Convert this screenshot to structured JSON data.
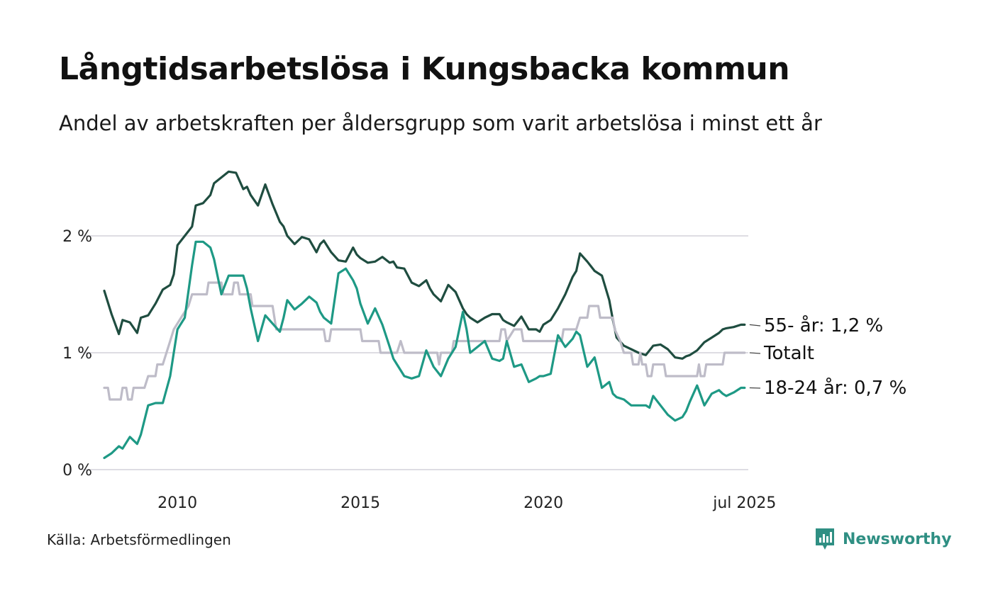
{
  "title": "Långtidsarbetslösa i Kungsbacka kommun",
  "subtitle": "Andel av arbetskraften per åldersgrupp som varit arbetslösa i minst ett år",
  "source": "Källa: Arbetsförmedlingen",
  "brand": "Newsworthy",
  "colors": {
    "series_55": "#1f4d40",
    "series_18_24": "#1e9985",
    "series_total": "#bebcc8",
    "grid": "#dedde3",
    "brand": "#2f8f83"
  },
  "chart_data": {
    "type": "line",
    "xlim": [
      2008.0,
      2025.6
    ],
    "ylim": [
      0,
      2.6
    ],
    "x_ticks": [
      {
        "value": 2010,
        "label": "2010"
      },
      {
        "value": 2015,
        "label": "2015"
      },
      {
        "value": 2020,
        "label": "2020"
      },
      {
        "value": 2025.5,
        "label": "jul 2025"
      }
    ],
    "y_ticks": [
      {
        "value": 0,
        "label": "0 %"
      },
      {
        "value": 1,
        "label": "1 %"
      },
      {
        "value": 2,
        "label": "2 %"
      }
    ],
    "grid": true,
    "series": [
      {
        "name": "55- år",
        "label": "55- år: 1,2 %",
        "color": "#1f4d40",
        "points": [
          [
            2008.0,
            1.53
          ],
          [
            2008.2,
            1.33
          ],
          [
            2008.4,
            1.16
          ],
          [
            2008.5,
            1.28
          ],
          [
            2008.7,
            1.26
          ],
          [
            2008.9,
            1.17
          ],
          [
            2009.0,
            1.3
          ],
          [
            2009.2,
            1.32
          ],
          [
            2009.4,
            1.42
          ],
          [
            2009.6,
            1.54
          ],
          [
            2009.8,
            1.58
          ],
          [
            2009.9,
            1.67
          ],
          [
            2010.0,
            1.92
          ],
          [
            2010.2,
            2.0
          ],
          [
            2010.4,
            2.08
          ],
          [
            2010.5,
            2.26
          ],
          [
            2010.7,
            2.28
          ],
          [
            2010.9,
            2.35
          ],
          [
            2011.0,
            2.45
          ],
          [
            2011.2,
            2.5
          ],
          [
            2011.4,
            2.55
          ],
          [
            2011.6,
            2.54
          ],
          [
            2011.8,
            2.4
          ],
          [
            2011.9,
            2.42
          ],
          [
            2012.0,
            2.35
          ],
          [
            2012.2,
            2.26
          ],
          [
            2012.4,
            2.44
          ],
          [
            2012.6,
            2.27
          ],
          [
            2012.8,
            2.12
          ],
          [
            2012.9,
            2.08
          ],
          [
            2013.0,
            2.0
          ],
          [
            2013.2,
            1.93
          ],
          [
            2013.4,
            1.99
          ],
          [
            2013.6,
            1.97
          ],
          [
            2013.8,
            1.86
          ],
          [
            2013.9,
            1.93
          ],
          [
            2014.0,
            1.96
          ],
          [
            2014.2,
            1.86
          ],
          [
            2014.4,
            1.79
          ],
          [
            2014.6,
            1.78
          ],
          [
            2014.8,
            1.9
          ],
          [
            2014.9,
            1.84
          ],
          [
            2015.0,
            1.81
          ],
          [
            2015.2,
            1.77
          ],
          [
            2015.4,
            1.78
          ],
          [
            2015.6,
            1.82
          ],
          [
            2015.8,
            1.77
          ],
          [
            2015.9,
            1.78
          ],
          [
            2016.0,
            1.73
          ],
          [
            2016.2,
            1.72
          ],
          [
            2016.4,
            1.6
          ],
          [
            2016.6,
            1.57
          ],
          [
            2016.8,
            1.62
          ],
          [
            2016.9,
            1.55
          ],
          [
            2017.0,
            1.5
          ],
          [
            2017.2,
            1.44
          ],
          [
            2017.4,
            1.58
          ],
          [
            2017.6,
            1.52
          ],
          [
            2017.8,
            1.38
          ],
          [
            2017.9,
            1.33
          ],
          [
            2018.0,
            1.3
          ],
          [
            2018.2,
            1.26
          ],
          [
            2018.4,
            1.3
          ],
          [
            2018.6,
            1.33
          ],
          [
            2018.8,
            1.33
          ],
          [
            2018.9,
            1.28
          ],
          [
            2019.0,
            1.26
          ],
          [
            2019.2,
            1.23
          ],
          [
            2019.4,
            1.31
          ],
          [
            2019.6,
            1.2
          ],
          [
            2019.8,
            1.2
          ],
          [
            2019.9,
            1.18
          ],
          [
            2020.0,
            1.24
          ],
          [
            2020.2,
            1.28
          ],
          [
            2020.4,
            1.38
          ],
          [
            2020.6,
            1.5
          ],
          [
            2020.8,
            1.65
          ],
          [
            2020.9,
            1.7
          ],
          [
            2021.0,
            1.85
          ],
          [
            2021.2,
            1.78
          ],
          [
            2021.4,
            1.7
          ],
          [
            2021.6,
            1.66
          ],
          [
            2021.8,
            1.45
          ],
          [
            2021.9,
            1.28
          ],
          [
            2022.0,
            1.13
          ],
          [
            2022.2,
            1.06
          ],
          [
            2022.4,
            1.03
          ],
          [
            2022.6,
            1.0
          ],
          [
            2022.8,
            0.98
          ],
          [
            2022.9,
            1.02
          ],
          [
            2023.0,
            1.06
          ],
          [
            2023.2,
            1.07
          ],
          [
            2023.4,
            1.03
          ],
          [
            2023.6,
            0.96
          ],
          [
            2023.8,
            0.95
          ],
          [
            2023.9,
            0.97
          ],
          [
            2024.0,
            0.98
          ],
          [
            2024.2,
            1.02
          ],
          [
            2024.4,
            1.09
          ],
          [
            2024.6,
            1.13
          ],
          [
            2024.8,
            1.17
          ],
          [
            2024.9,
            1.2
          ],
          [
            2025.0,
            1.21
          ],
          [
            2025.2,
            1.22
          ],
          [
            2025.4,
            1.24
          ],
          [
            2025.5,
            1.24
          ]
        ]
      },
      {
        "name": "Totalt",
        "label": "Totalt",
        "color": "#bebcc8",
        "points": [
          [
            2008.0,
            0.7
          ],
          [
            2008.1,
            0.7
          ],
          [
            2008.15,
            0.6
          ],
          [
            2008.45,
            0.6
          ],
          [
            2008.5,
            0.7
          ],
          [
            2008.6,
            0.7
          ],
          [
            2008.65,
            0.6
          ],
          [
            2008.75,
            0.6
          ],
          [
            2008.8,
            0.7
          ],
          [
            2009.1,
            0.7
          ],
          [
            2009.2,
            0.8
          ],
          [
            2009.4,
            0.8
          ],
          [
            2009.45,
            0.9
          ],
          [
            2009.6,
            0.9
          ],
          [
            2009.7,
            1.0
          ],
          [
            2009.8,
            1.1
          ],
          [
            2009.9,
            1.2
          ],
          [
            2010.1,
            1.3
          ],
          [
            2010.3,
            1.4
          ],
          [
            2010.4,
            1.5
          ],
          [
            2010.8,
            1.5
          ],
          [
            2010.85,
            1.6
          ],
          [
            2011.2,
            1.6
          ],
          [
            2011.25,
            1.5
          ],
          [
            2011.5,
            1.5
          ],
          [
            2011.55,
            1.6
          ],
          [
            2011.65,
            1.6
          ],
          [
            2011.7,
            1.5
          ],
          [
            2012.0,
            1.5
          ],
          [
            2012.05,
            1.4
          ],
          [
            2012.6,
            1.4
          ],
          [
            2012.65,
            1.3
          ],
          [
            2012.7,
            1.2
          ],
          [
            2014.0,
            1.2
          ],
          [
            2014.05,
            1.1
          ],
          [
            2014.15,
            1.1
          ],
          [
            2014.2,
            1.2
          ],
          [
            2015.0,
            1.2
          ],
          [
            2015.05,
            1.1
          ],
          [
            2015.5,
            1.1
          ],
          [
            2015.55,
            1.0
          ],
          [
            2016.0,
            1.0
          ],
          [
            2016.1,
            1.1
          ],
          [
            2016.2,
            1.0
          ],
          [
            2017.1,
            1.0
          ],
          [
            2017.15,
            0.9
          ],
          [
            2017.2,
            1.0
          ],
          [
            2017.5,
            1.0
          ],
          [
            2017.55,
            1.1
          ],
          [
            2018.8,
            1.1
          ],
          [
            2018.85,
            1.2
          ],
          [
            2018.95,
            1.2
          ],
          [
            2019.0,
            1.1
          ],
          [
            2019.2,
            1.2
          ],
          [
            2019.4,
            1.2
          ],
          [
            2019.45,
            1.1
          ],
          [
            2020.5,
            1.1
          ],
          [
            2020.55,
            1.2
          ],
          [
            2020.9,
            1.2
          ],
          [
            2021.0,
            1.3
          ],
          [
            2021.2,
            1.3
          ],
          [
            2021.25,
            1.4
          ],
          [
            2021.5,
            1.4
          ],
          [
            2021.55,
            1.3
          ],
          [
            2021.9,
            1.3
          ],
          [
            2021.95,
            1.2
          ],
          [
            2022.1,
            1.1
          ],
          [
            2022.2,
            1.0
          ],
          [
            2022.4,
            1.0
          ],
          [
            2022.45,
            0.9
          ],
          [
            2022.6,
            0.9
          ],
          [
            2022.65,
            1.0
          ],
          [
            2022.7,
            0.9
          ],
          [
            2022.8,
            0.9
          ],
          [
            2022.85,
            0.8
          ],
          [
            2022.95,
            0.8
          ],
          [
            2023.0,
            0.9
          ],
          [
            2023.3,
            0.9
          ],
          [
            2023.35,
            0.8
          ],
          [
            2024.2,
            0.8
          ],
          [
            2024.25,
            0.9
          ],
          [
            2024.3,
            0.8
          ],
          [
            2024.4,
            0.8
          ],
          [
            2024.45,
            0.9
          ],
          [
            2024.9,
            0.9
          ],
          [
            2024.95,
            1.0
          ],
          [
            2025.5,
            1.0
          ]
        ]
      },
      {
        "name": "18-24 år",
        "label": "18-24 år: 0,7 %",
        "color": "#1e9985",
        "points": [
          [
            2008.0,
            0.1
          ],
          [
            2008.2,
            0.14
          ],
          [
            2008.4,
            0.2
          ],
          [
            2008.5,
            0.18
          ],
          [
            2008.7,
            0.28
          ],
          [
            2008.9,
            0.22
          ],
          [
            2009.0,
            0.3
          ],
          [
            2009.2,
            0.55
          ],
          [
            2009.4,
            0.57
          ],
          [
            2009.6,
            0.57
          ],
          [
            2009.8,
            0.8
          ],
          [
            2009.9,
            1.0
          ],
          [
            2010.0,
            1.2
          ],
          [
            2010.2,
            1.3
          ],
          [
            2010.4,
            1.75
          ],
          [
            2010.5,
            1.95
          ],
          [
            2010.7,
            1.95
          ],
          [
            2010.9,
            1.9
          ],
          [
            2011.0,
            1.8
          ],
          [
            2011.2,
            1.5
          ],
          [
            2011.4,
            1.66
          ],
          [
            2011.6,
            1.66
          ],
          [
            2011.8,
            1.66
          ],
          [
            2011.9,
            1.55
          ],
          [
            2012.0,
            1.38
          ],
          [
            2012.2,
            1.1
          ],
          [
            2012.4,
            1.32
          ],
          [
            2012.6,
            1.25
          ],
          [
            2012.8,
            1.18
          ],
          [
            2012.9,
            1.3
          ],
          [
            2013.0,
            1.45
          ],
          [
            2013.2,
            1.37
          ],
          [
            2013.4,
            1.42
          ],
          [
            2013.6,
            1.48
          ],
          [
            2013.8,
            1.43
          ],
          [
            2013.9,
            1.35
          ],
          [
            2014.0,
            1.3
          ],
          [
            2014.2,
            1.25
          ],
          [
            2014.4,
            1.68
          ],
          [
            2014.6,
            1.72
          ],
          [
            2014.8,
            1.62
          ],
          [
            2014.9,
            1.55
          ],
          [
            2015.0,
            1.42
          ],
          [
            2015.2,
            1.25
          ],
          [
            2015.4,
            1.38
          ],
          [
            2015.6,
            1.24
          ],
          [
            2015.8,
            1.05
          ],
          [
            2015.9,
            0.95
          ],
          [
            2016.0,
            0.9
          ],
          [
            2016.2,
            0.8
          ],
          [
            2016.4,
            0.78
          ],
          [
            2016.6,
            0.8
          ],
          [
            2016.8,
            1.02
          ],
          [
            2016.9,
            0.95
          ],
          [
            2017.0,
            0.88
          ],
          [
            2017.2,
            0.8
          ],
          [
            2017.4,
            0.95
          ],
          [
            2017.6,
            1.05
          ],
          [
            2017.8,
            1.35
          ],
          [
            2017.9,
            1.2
          ],
          [
            2018.0,
            1.0
          ],
          [
            2018.2,
            1.05
          ],
          [
            2018.4,
            1.1
          ],
          [
            2018.6,
            0.95
          ],
          [
            2018.8,
            0.93
          ],
          [
            2018.9,
            0.95
          ],
          [
            2019.0,
            1.1
          ],
          [
            2019.2,
            0.88
          ],
          [
            2019.4,
            0.9
          ],
          [
            2019.6,
            0.75
          ],
          [
            2019.8,
            0.78
          ],
          [
            2019.9,
            0.8
          ],
          [
            2020.0,
            0.8
          ],
          [
            2020.2,
            0.82
          ],
          [
            2020.4,
            1.15
          ],
          [
            2020.6,
            1.05
          ],
          [
            2020.8,
            1.12
          ],
          [
            2020.9,
            1.18
          ],
          [
            2021.0,
            1.15
          ],
          [
            2021.2,
            0.88
          ],
          [
            2021.4,
            0.96
          ],
          [
            2021.6,
            0.7
          ],
          [
            2021.8,
            0.75
          ],
          [
            2021.9,
            0.65
          ],
          [
            2022.0,
            0.62
          ],
          [
            2022.2,
            0.6
          ],
          [
            2022.4,
            0.55
          ],
          [
            2022.6,
            0.55
          ],
          [
            2022.8,
            0.55
          ],
          [
            2022.9,
            0.53
          ],
          [
            2023.0,
            0.63
          ],
          [
            2023.2,
            0.55
          ],
          [
            2023.4,
            0.47
          ],
          [
            2023.6,
            0.42
          ],
          [
            2023.8,
            0.45
          ],
          [
            2023.9,
            0.5
          ],
          [
            2024.0,
            0.58
          ],
          [
            2024.2,
            0.72
          ],
          [
            2024.4,
            0.55
          ],
          [
            2024.6,
            0.65
          ],
          [
            2024.8,
            0.68
          ],
          [
            2024.9,
            0.65
          ],
          [
            2025.0,
            0.63
          ],
          [
            2025.2,
            0.66
          ],
          [
            2025.4,
            0.7
          ],
          [
            2025.5,
            0.7
          ]
        ]
      }
    ]
  }
}
